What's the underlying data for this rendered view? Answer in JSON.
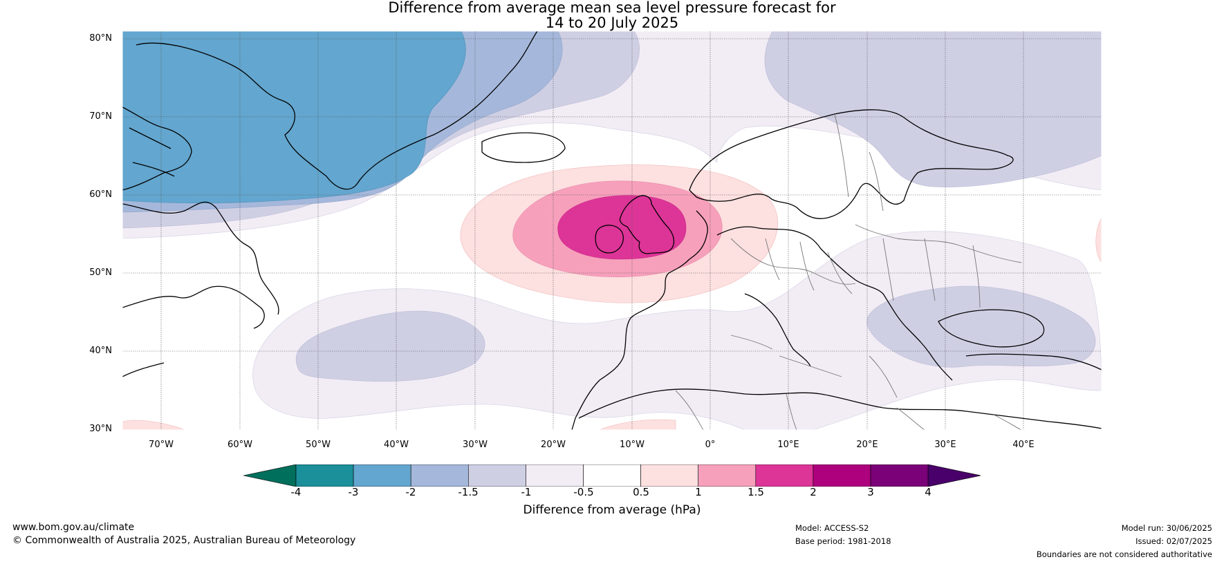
{
  "title": {
    "line1": "Difference from average mean sea level pressure forecast for",
    "line2": "14 to 20 July 2025"
  },
  "map": {
    "region": "North Atlantic / Europe",
    "projection": "Plate carrée",
    "lon_range": [
      -75,
      50
    ],
    "lat_range": [
      30,
      81
    ],
    "lat_labels": [
      "80°N",
      "70°N",
      "60°N",
      "50°N",
      "40°N",
      "30°N"
    ],
    "lon_labels": [
      "70°W",
      "60°W",
      "50°W",
      "40°W",
      "30°W",
      "20°W",
      "10°W",
      "0°",
      "10°E",
      "20°E",
      "30°E",
      "40°E"
    ],
    "features": [
      "Greenland",
      "Iceland",
      "British Isles",
      "Scandinavia",
      "Europe",
      "Mediterranean",
      "Labrador"
    ]
  },
  "colorbar": {
    "title": "Difference from average (hPa)",
    "tick_labels": [
      "-4",
      "-3",
      "-2",
      "-1.5",
      "-1",
      "-0.5",
      "0.5",
      "1",
      "1.5",
      "2",
      "3",
      "4"
    ],
    "colors": {
      "below_-4": "#006f5c",
      "-4_-3": "#1b8f9a",
      "-3_-2": "#63a6cf",
      "-2_-1.5": "#a5b8db",
      "-1.5_-1": "#cfcfe4",
      "-1_-0.5": "#f2ecf5",
      "-0.5_0.5": "#ffffff",
      "0.5_1": "#fde0e0",
      "1_1.5": "#f7a0bc",
      "1.5_2": "#dd3497",
      "2_3": "#ae017e",
      "3_4": "#7a0177",
      "above_4": "#49006a"
    }
  },
  "footer": {
    "website": "www.bom.gov.au/climate",
    "copyright": "© Commonwealth of Australia 2025, Australian Bureau of Meteorology",
    "model": "Model: ACCESS-S2",
    "base_period": "Base period: 1981-2018",
    "model_run": "Model run: 30/06/2025",
    "issued": "Issued: 02/07/2025",
    "disclaimer": "Boundaries are not considered authoritative"
  }
}
